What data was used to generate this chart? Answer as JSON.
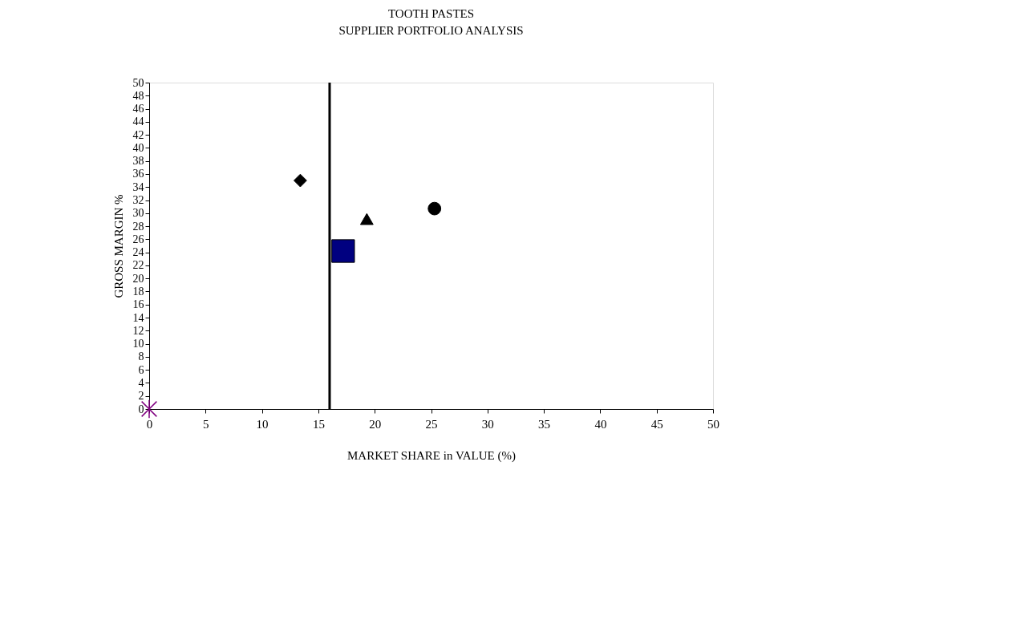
{
  "chart_data": {
    "type": "scatter",
    "title": "TOOTH PASTES",
    "subtitle": "SUPPLIER PORTFOLIO ANALYSIS",
    "xlabel": "MARKET SHARE in VALUE (%)",
    "ylabel": "GROSS MARGIN %",
    "xlim": [
      0,
      50
    ],
    "xticks": [
      0,
      5,
      10,
      15,
      20,
      25,
      30,
      35,
      40,
      45,
      50
    ],
    "ylim": [
      0,
      50
    ],
    "yticks": [
      0,
      2,
      4,
      6,
      8,
      10,
      12,
      14,
      16,
      18,
      20,
      22,
      24,
      26,
      28,
      30,
      32,
      34,
      36,
      38,
      40,
      42,
      44,
      46,
      48,
      50
    ],
    "grid": false,
    "series": [
      {
        "x": [
          13.4
        ],
        "values": [
          35.0
        ],
        "marker": "diamond",
        "color": "#000000"
      },
      {
        "x": [
          17.2
        ],
        "values": [
          24.2
        ],
        "marker": "square",
        "color": "#000080"
      },
      {
        "x": [
          19.3
        ],
        "values": [
          29.1
        ],
        "marker": "triangle",
        "color": "#000000"
      },
      {
        "x": [
          25.3
        ],
        "values": [
          30.7
        ],
        "marker": "circle",
        "color": "#000000"
      },
      {
        "x": [
          0
        ],
        "values": [
          0
        ],
        "marker": "cross",
        "color": "#800080"
      }
    ],
    "ref_lines": [
      {
        "axis": "x",
        "value": 16,
        "color": "#000000"
      }
    ]
  }
}
